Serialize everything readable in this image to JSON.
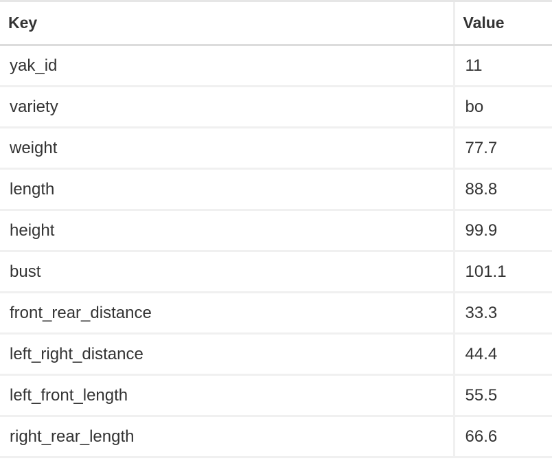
{
  "table": {
    "headers": {
      "key": "Key",
      "value": "Value"
    },
    "rows": [
      {
        "key": "yak_id",
        "value": "11"
      },
      {
        "key": "variety",
        "value": "bo"
      },
      {
        "key": "weight",
        "value": "77.7"
      },
      {
        "key": "length",
        "value": "88.8"
      },
      {
        "key": "height",
        "value": "99.9"
      },
      {
        "key": "bust",
        "value": "101.1"
      },
      {
        "key": "front_rear_distance",
        "value": "33.3"
      },
      {
        "key": "left_right_distance",
        "value": "44.4"
      },
      {
        "key": "left_front_length",
        "value": "55.5"
      },
      {
        "key": "right_rear_length",
        "value": "66.6"
      }
    ]
  }
}
